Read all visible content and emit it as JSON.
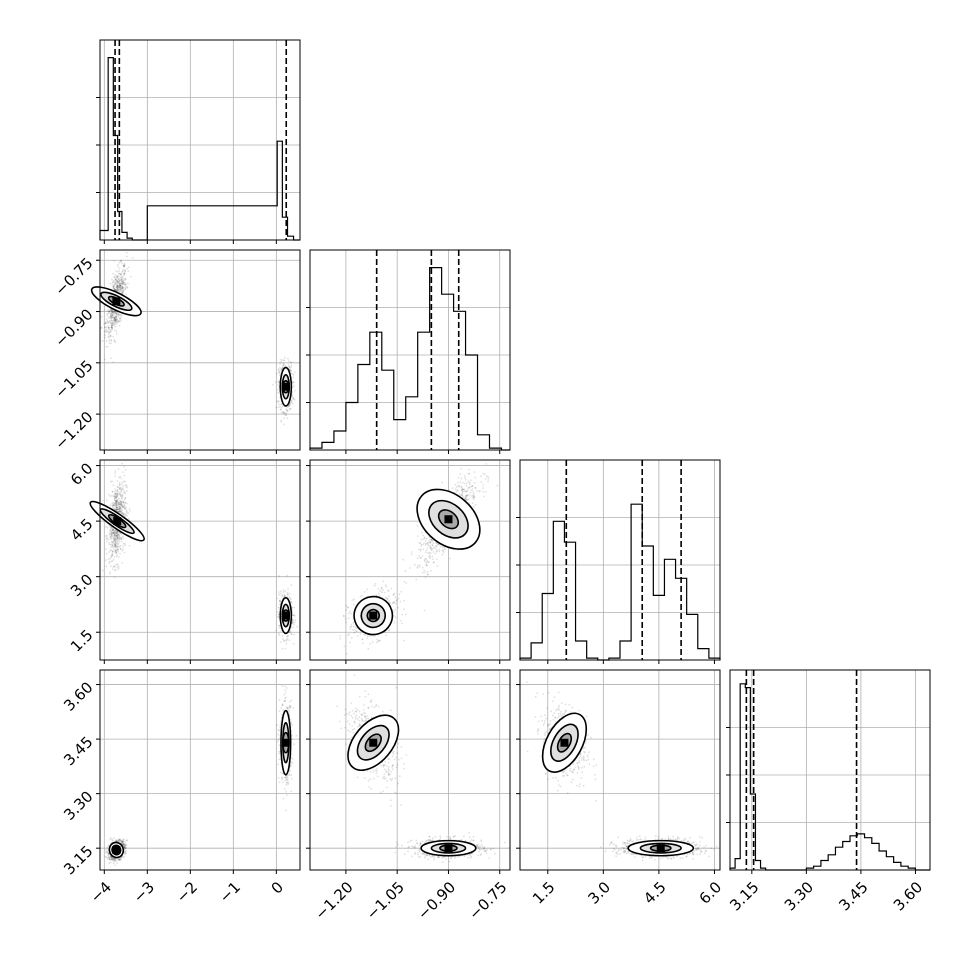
{
  "chart_data": {
    "type": "corner",
    "grid": true,
    "parameters": [
      {
        "index": 0,
        "range": [
          -4.1,
          0.55
        ],
        "ticks": [
          -4,
          -3,
          -2,
          -1,
          0
        ],
        "tick_labels": [
          "−4",
          "−3",
          "−2",
          "−1",
          "0"
        ],
        "quantiles": [
          -3.75,
          -3.65,
          0.23
        ],
        "hist": {
          "bins": [
            -4.1,
            -3.91,
            -3.79,
            -3.69,
            -3.59,
            -3.47,
            -3.35,
            -3.2,
            -3.0,
            0.02,
            0.14,
            0.26,
            0.4,
            0.55
          ],
          "counts": [
            0.05,
            0.96,
            0.55,
            0.15,
            0.04,
            0.01,
            0,
            0,
            0.18,
            0.52,
            0.12,
            0.02,
            0
          ],
          "ylim": [
            0,
            1.0
          ]
        },
        "modes": [
          {
            "mean": -3.72,
            "sd": 0.1
          },
          {
            "mean": 0.22,
            "sd": 0.09
          }
        ]
      },
      {
        "index": 1,
        "range": [
          -1.305,
          -0.72
        ],
        "ticks": [
          -1.2,
          -1.05,
          -0.9,
          -0.75
        ],
        "tick_labels": [
          "−1.20",
          "−1.05",
          "−0.90",
          "−0.75"
        ],
        "quantiles": [
          -1.11,
          -0.95,
          -0.87
        ],
        "hist": {
          "bins": [
            -1.305,
            -1.27,
            -1.235,
            -1.2,
            -1.165,
            -1.13,
            -1.095,
            -1.06,
            -1.025,
            -0.99,
            -0.955,
            -0.92,
            -0.885,
            -0.85,
            -0.815,
            -0.78,
            -0.745,
            -0.72
          ],
          "counts": [
            0.01,
            0.04,
            0.1,
            0.25,
            0.45,
            0.62,
            0.42,
            0.16,
            0.28,
            0.62,
            0.96,
            0.82,
            0.73,
            0.5,
            0.08,
            0.01,
            0
          ],
          "ylim": [
            0,
            1.0
          ]
        },
        "modes": [
          {
            "mean": -1.12,
            "sd": 0.035
          },
          {
            "mean": -0.94,
            "sd": 0.03
          },
          {
            "mean": -0.85,
            "sd": 0.04
          }
        ]
      },
      {
        "index": 2,
        "range": [
          0.75,
          6.15
        ],
        "ticks": [
          1.5,
          3.0,
          4.5,
          6.0
        ],
        "tick_labels": [
          "1.5",
          "3.0",
          "4.5",
          "6.0"
        ],
        "quantiles": [
          2.0,
          4.05,
          5.1
        ],
        "hist": {
          "bins": [
            0.75,
            1.05,
            1.35,
            1.65,
            1.95,
            2.25,
            2.55,
            2.85,
            3.15,
            3.45,
            3.75,
            4.05,
            4.35,
            4.65,
            4.95,
            5.25,
            5.55,
            5.85,
            6.15
          ],
          "counts": [
            0.01,
            0.09,
            0.35,
            0.73,
            0.62,
            0.1,
            0.01,
            0,
            0.01,
            0.1,
            0.82,
            0.6,
            0.34,
            0.53,
            0.43,
            0.24,
            0.06,
            0.01
          ],
          "ylim": [
            0,
            1.0
          ]
        },
        "modes": [
          {
            "mean": 1.95,
            "sd": 0.33
          },
          {
            "mean": 4.0,
            "sd": 0.2
          },
          {
            "mean": 5.2,
            "sd": 0.3
          }
        ]
      },
      {
        "index": 3,
        "range": [
          3.09,
          3.64
        ],
        "ticks": [
          3.15,
          3.3,
          3.45,
          3.6
        ],
        "tick_labels": [
          "3.15",
          "3.30",
          "3.45",
          "3.60"
        ],
        "quantiles": [
          3.135,
          3.155,
          3.438
        ],
        "hist": {
          "bins": [
            3.09,
            3.104,
            3.118,
            3.132,
            3.146,
            3.16,
            3.174,
            3.188,
            3.22,
            3.25,
            3.28,
            3.3,
            3.32,
            3.34,
            3.36,
            3.38,
            3.4,
            3.42,
            3.44,
            3.46,
            3.48,
            3.5,
            3.52,
            3.54,
            3.56,
            3.58,
            3.6,
            3.62,
            3.64
          ],
          "counts": [
            0.01,
            0.06,
            0.98,
            0.96,
            0.4,
            0.05,
            0.01,
            0,
            0,
            0,
            0,
            0.01,
            0.02,
            0.05,
            0.08,
            0.12,
            0.15,
            0.18,
            0.19,
            0.17,
            0.14,
            0.1,
            0.07,
            0.04,
            0.02,
            0.01,
            0,
            0
          ],
          "ylim": [
            0,
            1.0
          ]
        },
        "modes": [
          {
            "mean": 3.14,
            "sd": 0.012
          },
          {
            "mean": 3.44,
            "sd": 0.055
          }
        ]
      }
    ],
    "joint_clusters": {
      "1_0": [
        {
          "x": -3.72,
          "y": -0.87,
          "sx": 0.12,
          "sy": 0.05,
          "rho": 0.6,
          "n": 700
        },
        {
          "x": 0.22,
          "y": -1.12,
          "sx": 0.08,
          "sy": 0.035,
          "rho": 0.0,
          "n": 500
        }
      ],
      "2_0": [
        {
          "x": -3.7,
          "y": 4.5,
          "sx": 0.1,
          "sy": 0.55,
          "rho": 0.3,
          "n": 700
        },
        {
          "x": 0.22,
          "y": 1.95,
          "sx": 0.08,
          "sy": 0.3,
          "rho": 0.0,
          "n": 500
        }
      ],
      "2_1": [
        {
          "x": -0.9,
          "y": 4.55,
          "sx": 0.045,
          "sy": 0.6,
          "rho": 0.8,
          "n": 700
        },
        {
          "x": -1.12,
          "y": 1.95,
          "sx": 0.035,
          "sy": 0.32,
          "rho": 0.3,
          "n": 500
        }
      ],
      "3_0": [
        {
          "x": -3.72,
          "y": 3.145,
          "sx": 0.1,
          "sy": 0.013,
          "rho": 0.3,
          "n": 700
        },
        {
          "x": 0.22,
          "y": 3.44,
          "sx": 0.07,
          "sy": 0.055,
          "rho": 0.0,
          "n": 500
        }
      ],
      "3_1": [
        {
          "x": -0.9,
          "y": 3.15,
          "sx": 0.05,
          "sy": 0.013,
          "rho": 0.0,
          "n": 700
        },
        {
          "x": -1.12,
          "y": 3.44,
          "sx": 0.035,
          "sy": 0.055,
          "rho": -0.5,
          "n": 500
        }
      ],
      "3_2": [
        {
          "x": 4.55,
          "y": 3.15,
          "sx": 0.55,
          "sy": 0.013,
          "rho": 0.0,
          "n": 700
        },
        {
          "x": 1.95,
          "y": 3.44,
          "sx": 0.3,
          "sy": 0.055,
          "rho": -0.3,
          "n": 500
        }
      ]
    }
  }
}
